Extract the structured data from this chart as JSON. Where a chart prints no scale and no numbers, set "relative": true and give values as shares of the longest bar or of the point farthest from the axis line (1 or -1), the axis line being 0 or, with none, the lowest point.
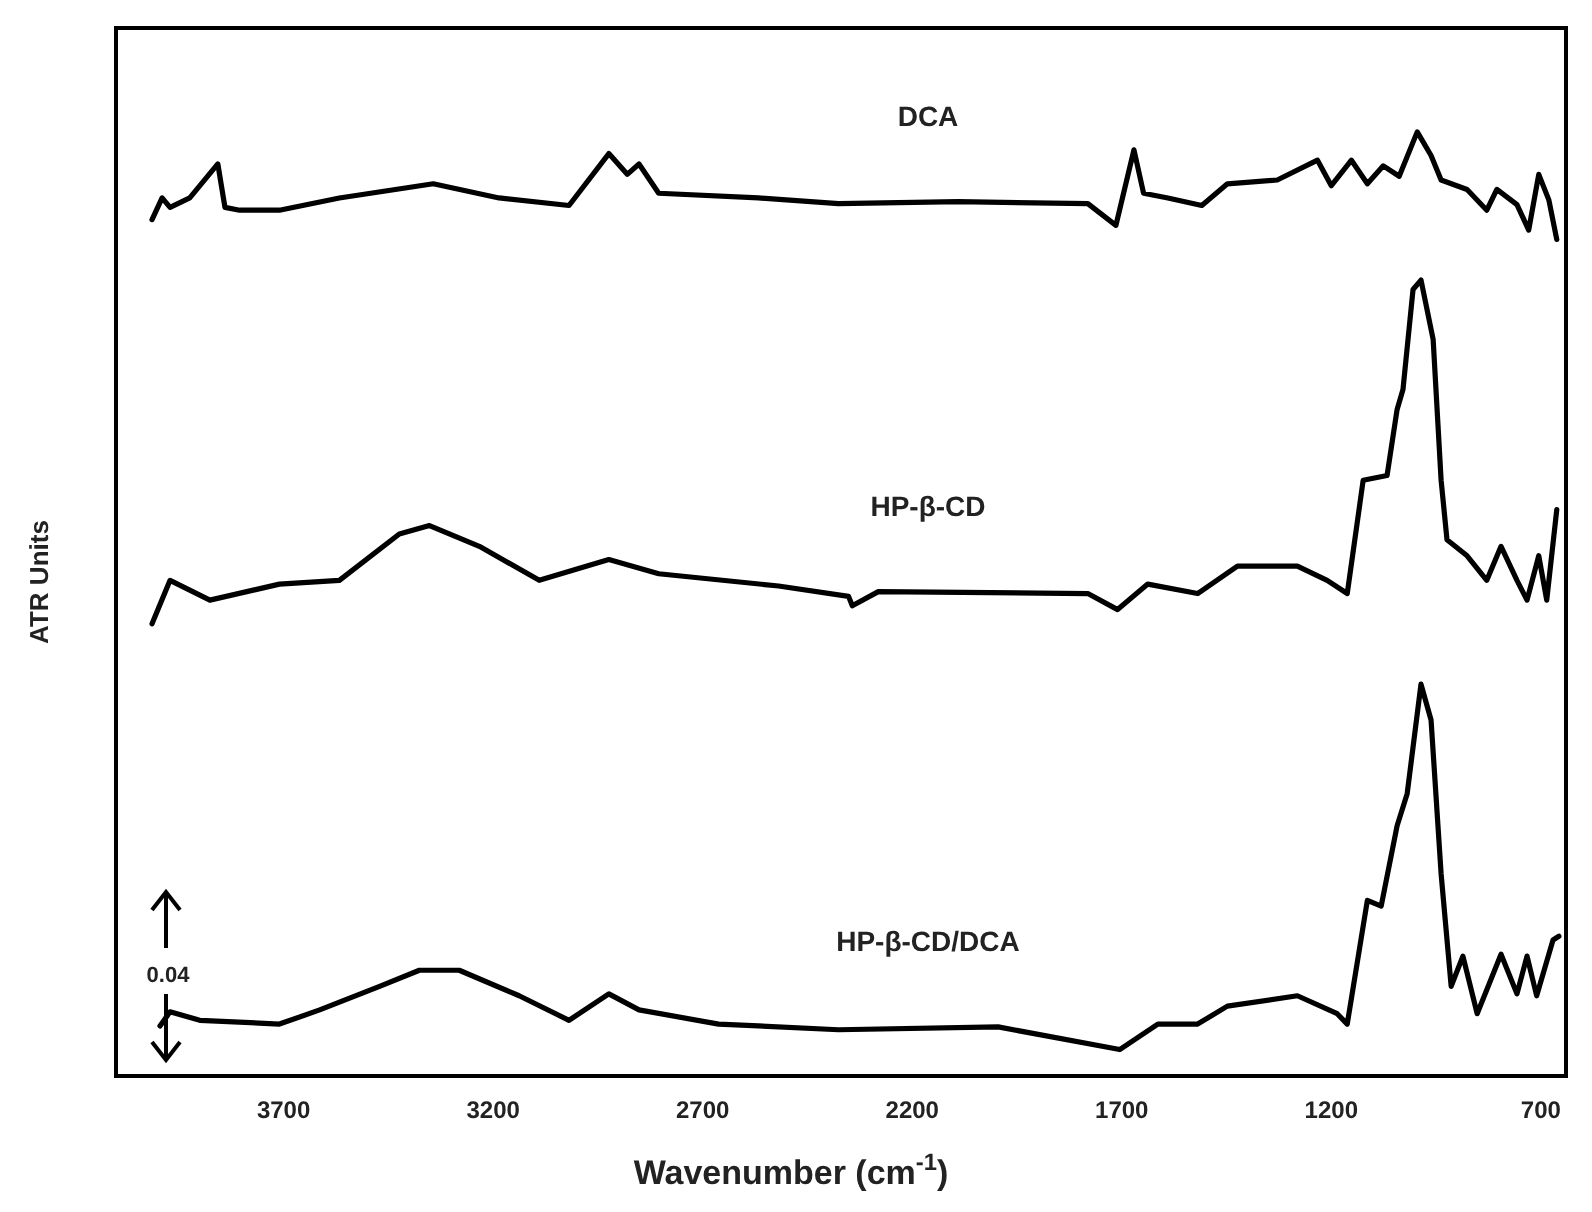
{
  "chart_data": {
    "type": "line",
    "xlabel": "Wavenumber (cm$^{-1}$)",
    "ylabel": "ATR Units",
    "relative": true,
    "xlim": [
      4100,
      640
    ],
    "xticks": [
      3700,
      3200,
      2700,
      2200,
      1700,
      1200,
      700
    ],
    "grid": false,
    "legend": false,
    "marker": "none",
    "line_style": "solid",
    "annotations": [
      "0.04"
    ],
    "series": [
      {
        "name": "DCA",
        "color": "#000000",
        "x": [
          4014,
          3990,
          3971,
          3924,
          3857,
          3840,
          3805,
          3710,
          3567,
          3343,
          3186,
          3019,
          2924,
          2880,
          2852,
          2805,
          2567,
          2376,
          2090,
          1781,
          1714,
          1671,
          1648,
          1590,
          1509,
          1448,
          1329,
          1233,
          1200,
          1152,
          1114,
          1076,
          1038,
          995,
          962,
          938,
          876,
          829,
          805,
          757,
          729,
          705,
          681,
          662
        ],
        "values": [
          0.907,
          0.93,
          0.92,
          0.93,
          0.966,
          0.92,
          0.917,
          0.917,
          0.93,
          0.945,
          0.93,
          0.922,
          0.977,
          0.955,
          0.966,
          0.935,
          0.93,
          0.924,
          0.926,
          0.924,
          0.901,
          0.981,
          0.935,
          0.93,
          0.922,
          0.945,
          0.949,
          0.97,
          0.943,
          0.97,
          0.945,
          0.964,
          0.953,
          1.0,
          0.975,
          0.949,
          0.939,
          0.917,
          0.939,
          0.923,
          0.896,
          0.955,
          0.928,
          0.886
        ]
      },
      {
        "name": "HP-β-CD",
        "color": "#000000",
        "x": [
          4014,
          3971,
          3876,
          3710,
          3567,
          3424,
          3352,
          3233,
          3090,
          2924,
          2805,
          2519,
          2352,
          2343,
          2281,
          1781,
          1710,
          1638,
          1519,
          1424,
          1281,
          1210,
          1162,
          1124,
          1067,
          1043,
          1029,
          1005,
          986,
          957,
          938,
          924,
          876,
          829,
          795,
          757,
          733,
          705,
          686,
          662
        ],
        "values": [
          0.479,
          0.525,
          0.504,
          0.521,
          0.525,
          0.574,
          0.583,
          0.561,
          0.525,
          0.547,
          0.532,
          0.519,
          0.508,
          0.498,
          0.513,
          0.511,
          0.494,
          0.521,
          0.511,
          0.54,
          0.54,
          0.525,
          0.511,
          0.631,
          0.636,
          0.706,
          0.727,
          0.833,
          0.843,
          0.78,
          0.631,
          0.568,
          0.551,
          0.525,
          0.561,
          0.525,
          0.504,
          0.551,
          0.504,
          0.6
        ]
      },
      {
        "name": "HP-β-CD/DCA",
        "color": "#000000",
        "x": [
          3995,
          3971,
          3900,
          3710,
          3614,
          3471,
          3376,
          3281,
          3138,
          3019,
          2924,
          2852,
          2662,
          2376,
          1995,
          1705,
          1614,
          1519,
          1448,
          1281,
          1186,
          1162,
          1114,
          1081,
          1043,
          1019,
          986,
          962,
          938,
          914,
          886,
          852,
          795,
          757,
          733,
          710,
          671,
          657
        ],
        "values": [
          0.053,
          0.068,
          0.059,
          0.055,
          0.07,
          0.095,
          0.112,
          0.112,
          0.085,
          0.059,
          0.087,
          0.07,
          0.055,
          0.049,
          0.052,
          0.028,
          0.055,
          0.055,
          0.074,
          0.085,
          0.066,
          0.055,
          0.186,
          0.18,
          0.265,
          0.299,
          0.415,
          0.377,
          0.214,
          0.095,
          0.127,
          0.066,
          0.129,
          0.087,
          0.127,
          0.085,
          0.144,
          0.148
        ]
      }
    ]
  }
}
